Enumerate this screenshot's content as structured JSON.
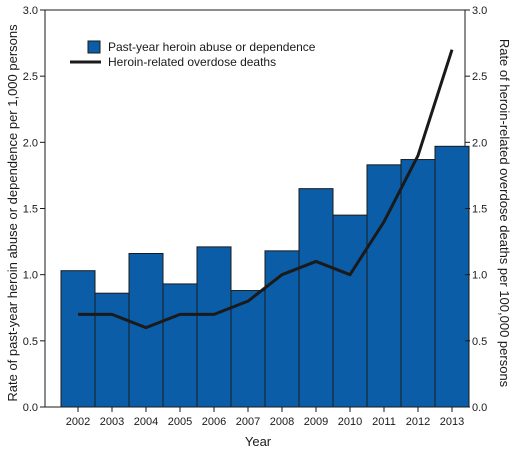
{
  "chart_data": {
    "type": "bar+line",
    "categories": [
      "2002",
      "2003",
      "2004",
      "2005",
      "2006",
      "2007",
      "2008",
      "2009",
      "2010",
      "2011",
      "2012",
      "2013"
    ],
    "series": [
      {
        "name": "Past-year heroin abuse or dependence",
        "type": "bar",
        "axis": "left",
        "color": "#0b5da8",
        "values": [
          1.03,
          0.86,
          1.16,
          0.93,
          1.21,
          0.88,
          1.18,
          1.65,
          1.45,
          1.83,
          1.87,
          1.97
        ]
      },
      {
        "name": "Heroin-related overdose deaths",
        "type": "line",
        "axis": "right",
        "color": "#1a1a1a",
        "values": [
          0.7,
          0.7,
          0.6,
          0.7,
          0.7,
          0.8,
          1.0,
          1.1,
          1.0,
          1.4,
          1.9,
          2.7
        ]
      }
    ],
    "xlabel": "Year",
    "ylabel_left": "Rate of past-year heroin abuse or dependence per 1,000 persons",
    "ylabel_right": "Rate of heroin-related overdose deaths per 100,000 persons",
    "ylim": [
      0,
      3.0
    ],
    "yticks": [
      "0.0",
      "0.5",
      "1.0",
      "1.5",
      "2.0",
      "2.5",
      "3.0"
    ],
    "grid": false,
    "legend_position": "top-left"
  }
}
